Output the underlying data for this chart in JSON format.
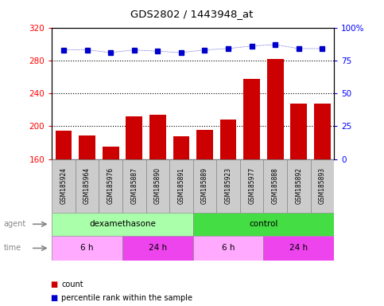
{
  "title": "GDS2802 / 1443948_at",
  "samples": [
    "GSM185924",
    "GSM185964",
    "GSM185976",
    "GSM185887",
    "GSM185890",
    "GSM185891",
    "GSM185889",
    "GSM185923",
    "GSM185977",
    "GSM185888",
    "GSM185892",
    "GSM185893"
  ],
  "counts": [
    195,
    189,
    175,
    212,
    214,
    188,
    196,
    208,
    258,
    282,
    228,
    228
  ],
  "percentile_ranks": [
    83,
    83,
    81,
    83,
    82,
    81,
    83,
    84,
    86,
    87,
    84,
    84
  ],
  "ylim_left": [
    160,
    320
  ],
  "ylim_right": [
    0,
    100
  ],
  "yticks_left": [
    160,
    200,
    240,
    280,
    320
  ],
  "yticks_right": [
    0,
    25,
    50,
    75,
    100
  ],
  "bar_color": "#cc0000",
  "dot_color": "#0000cc",
  "agent_groups": [
    {
      "label": "dexamethasone",
      "start": 0,
      "end": 6,
      "color": "#aaffaa"
    },
    {
      "label": "control",
      "start": 6,
      "end": 12,
      "color": "#44dd44"
    }
  ],
  "time_groups": [
    {
      "label": "6 h",
      "start": 0,
      "end": 3,
      "color": "#ffaaff"
    },
    {
      "label": "24 h",
      "start": 3,
      "end": 6,
      "color": "#ee44ee"
    },
    {
      "label": "6 h",
      "start": 6,
      "end": 9,
      "color": "#ffaaff"
    },
    {
      "label": "24 h",
      "start": 9,
      "end": 12,
      "color": "#ee44ee"
    }
  ],
  "legend_items": [
    {
      "label": "count",
      "color": "#cc0000"
    },
    {
      "label": "percentile rank within the sample",
      "color": "#0000cc"
    }
  ],
  "sample_box_color": "#cccccc",
  "grid_color": "#000000",
  "white": "#ffffff"
}
